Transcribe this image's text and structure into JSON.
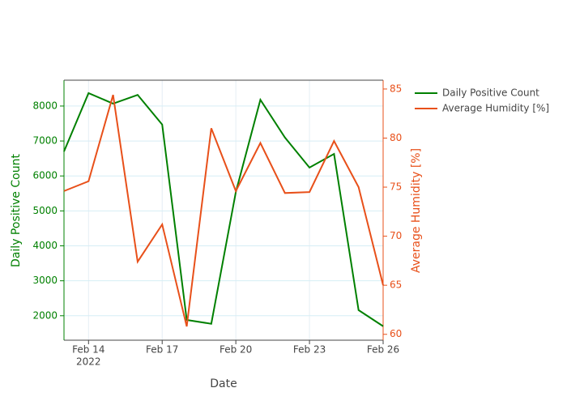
{
  "chart_data": {
    "type": "line",
    "x": [
      "2022-02-13",
      "2022-02-14",
      "2022-02-15",
      "2022-02-16",
      "2022-02-17",
      "2022-02-18",
      "2022-02-19",
      "2022-02-20",
      "2022-02-21",
      "2022-02-22",
      "2022-02-23",
      "2022-02-24",
      "2022-02-25",
      "2022-02-26"
    ],
    "series": [
      {
        "name": "Daily Positive Count",
        "color": "#008000",
        "axis": "y",
        "values": [
          6700,
          8370,
          8070,
          8320,
          7470,
          1880,
          1770,
          5540,
          8180,
          7100,
          6240,
          6630,
          2160,
          1700
        ]
      },
      {
        "name": "Average Humidity [%]",
        "color": "#e8501a",
        "axis": "y2",
        "values": [
          74.6,
          75.6,
          84.4,
          67.4,
          71.2,
          60.8,
          81.0,
          74.6,
          79.5,
          74.4,
          74.5,
          79.7,
          75.0,
          65.0
        ]
      }
    ],
    "xlabel": "Date",
    "ylabel": "Daily Positive Count",
    "y2label": "Average Humidity [%]",
    "xlim": [
      "2022-02-13",
      "2022-02-26"
    ],
    "xticks": [
      {
        "value": "2022-02-14",
        "label": "Feb 14"
      },
      {
        "value": "2022-02-17",
        "label": "Feb 17"
      },
      {
        "value": "2022-02-20",
        "label": "Feb 20"
      },
      {
        "value": "2022-02-23",
        "label": "Feb 23"
      },
      {
        "value": "2022-02-26",
        "label": "Feb 26"
      }
    ],
    "xtick_year": "2022",
    "ylim": [
      1300,
      8740
    ],
    "yticks": [
      2000,
      3000,
      4000,
      5000,
      6000,
      7000,
      8000
    ],
    "y2lim": [
      59.4,
      85.9
    ],
    "y2ticks": [
      60,
      65,
      70,
      75,
      80,
      85
    ],
    "grid": true,
    "legend": "top-right"
  }
}
